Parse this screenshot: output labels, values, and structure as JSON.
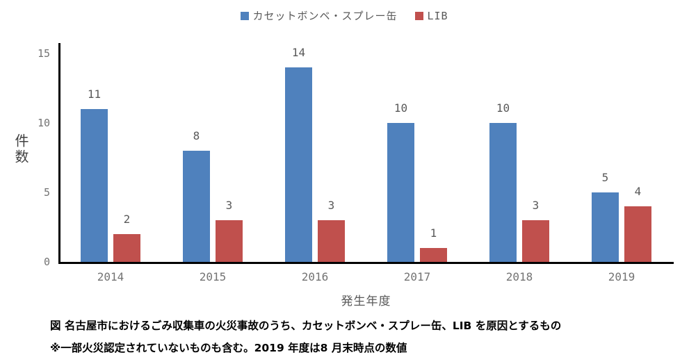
{
  "legend": [
    {
      "label": "カセットボンベ・スプレー缶",
      "color": "#4F81BD",
      "swatch_icon": "blue-square-icon"
    },
    {
      "label": "LIB",
      "color": "#C0504D",
      "swatch_icon": "red-square-icon"
    }
  ],
  "chart_data": {
    "type": "bar",
    "categories": [
      "2014",
      "2015",
      "2016",
      "2017",
      "2018",
      "2019"
    ],
    "series": [
      {
        "name": "カセットボンベ・スプレー缶",
        "key": "cassette-spray",
        "color": "#4F81BD",
        "values": [
          11,
          8,
          14,
          10,
          10,
          5
        ]
      },
      {
        "name": "LIB",
        "key": "lib",
        "color": "#C0504D",
        "values": [
          2,
          3,
          3,
          1,
          3,
          4
        ]
      }
    ],
    "title": "",
    "xlabel": "発生年度",
    "ylabel": "件数",
    "ylim": [
      0,
      15
    ],
    "yticks": [
      0,
      5,
      10,
      15
    ],
    "grid": false,
    "data_labels": true,
    "legend_position": "top"
  },
  "caption": {
    "line1": "図 名古屋市におけるごみ収集車の火災事故のうち、カセットボンベ・スプレー缶、LIB を原因とするもの",
    "line2": "※一部火災認定されていないものも含む。2019 年度は8 月末時点の数値"
  },
  "colors": {
    "series_blue": "#4F81BD",
    "series_red": "#C0504D",
    "axis_line": "#000000",
    "tick_label": "#737373",
    "data_label": "#595959",
    "background": "#ffffff"
  }
}
